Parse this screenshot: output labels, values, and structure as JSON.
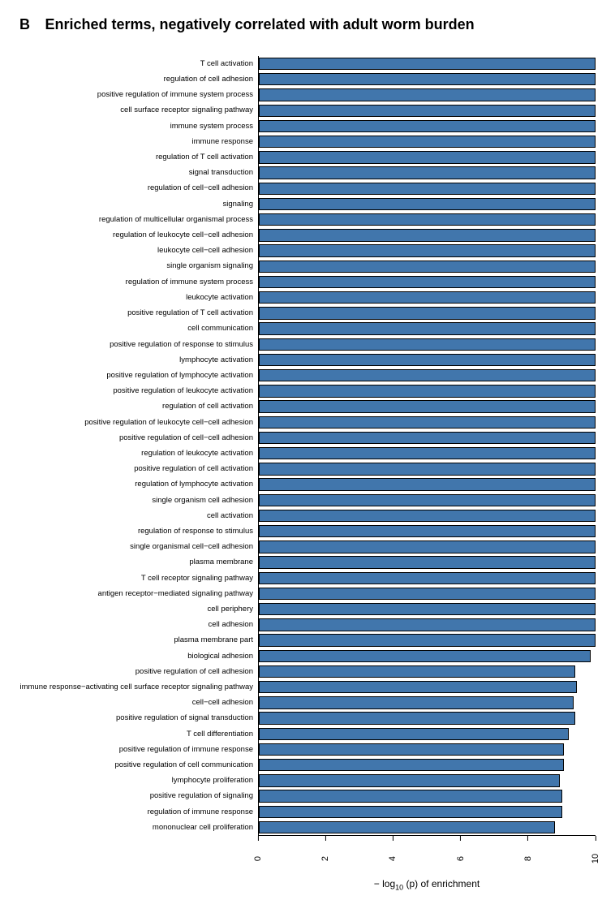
{
  "panel_label": "B",
  "title": "Enriched terms, negatively correlated with adult worm burden",
  "chart": {
    "type": "bar",
    "orientation": "horizontal",
    "xlabel_html": "− log<sub>10</sub> (p) of enrichment",
    "xlim": [
      0,
      10
    ],
    "xtick_step": 2,
    "xticks": [
      0,
      2,
      4,
      6,
      8,
      10
    ],
    "bar_color": "#4176ac",
    "bar_border_color": "#000000",
    "background_color": "#ffffff",
    "label_fontsize": 9.5,
    "tick_fontsize": 11,
    "terms": [
      {
        "label": "T cell activation",
        "value": 10.0
      },
      {
        "label": "regulation of cell adhesion",
        "value": 10.0
      },
      {
        "label": "positive regulation of immune system process",
        "value": 10.0
      },
      {
        "label": "cell surface receptor signaling pathway",
        "value": 10.0
      },
      {
        "label": "immune system process",
        "value": 10.0
      },
      {
        "label": "immune response",
        "value": 10.0
      },
      {
        "label": "regulation of T cell activation",
        "value": 10.0
      },
      {
        "label": "signal transduction",
        "value": 10.0
      },
      {
        "label": "regulation of cell−cell adhesion",
        "value": 10.0
      },
      {
        "label": "signaling",
        "value": 10.0
      },
      {
        "label": "regulation of multicellular organismal process",
        "value": 10.0
      },
      {
        "label": "regulation of leukocyte cell−cell adhesion",
        "value": 10.0
      },
      {
        "label": "leukocyte cell−cell adhesion",
        "value": 10.0
      },
      {
        "label": "single organism signaling",
        "value": 10.0
      },
      {
        "label": "regulation of immune system process",
        "value": 10.0
      },
      {
        "label": "leukocyte activation",
        "value": 10.0
      },
      {
        "label": "positive regulation of T cell activation",
        "value": 10.0
      },
      {
        "label": "cell communication",
        "value": 10.0
      },
      {
        "label": "positive regulation of response to stimulus",
        "value": 10.0
      },
      {
        "label": "lymphocyte activation",
        "value": 10.0
      },
      {
        "label": "positive regulation of lymphocyte activation",
        "value": 10.0
      },
      {
        "label": "positive regulation of leukocyte activation",
        "value": 10.0
      },
      {
        "label": "regulation of cell activation",
        "value": 10.0
      },
      {
        "label": "positive regulation of leukocyte cell−cell adhesion",
        "value": 10.0
      },
      {
        "label": "positive regulation of cell−cell adhesion",
        "value": 10.0
      },
      {
        "label": "regulation of leukocyte activation",
        "value": 10.0
      },
      {
        "label": "positive regulation of cell activation",
        "value": 10.0
      },
      {
        "label": "regulation of lymphocyte activation",
        "value": 10.0
      },
      {
        "label": "single organism cell adhesion",
        "value": 10.0
      },
      {
        "label": "cell activation",
        "value": 10.0
      },
      {
        "label": "regulation of response to stimulus",
        "value": 10.0
      },
      {
        "label": "single organismal cell−cell adhesion",
        "value": 10.0
      },
      {
        "label": "plasma membrane",
        "value": 10.0
      },
      {
        "label": "T cell receptor signaling pathway",
        "value": 10.0
      },
      {
        "label": "antigen receptor−mediated signaling pathway",
        "value": 10.0
      },
      {
        "label": "cell periphery",
        "value": 10.0
      },
      {
        "label": "cell adhesion",
        "value": 10.0
      },
      {
        "label": "plasma membrane part",
        "value": 10.0
      },
      {
        "label": "biological adhesion",
        "value": 9.85
      },
      {
        "label": "positive regulation of cell adhesion",
        "value": 9.4
      },
      {
        "label": "immune response−activating cell surface receptor signaling pathway",
        "value": 9.45
      },
      {
        "label": "cell−cell adhesion",
        "value": 9.35
      },
      {
        "label": "positive regulation of signal transduction",
        "value": 9.4
      },
      {
        "label": "T cell differentiation",
        "value": 9.2
      },
      {
        "label": "positive regulation of immune response",
        "value": 9.05
      },
      {
        "label": "positive regulation of cell communication",
        "value": 9.05
      },
      {
        "label": "lymphocyte proliferation",
        "value": 8.95
      },
      {
        "label": "positive regulation of signaling",
        "value": 9.0
      },
      {
        "label": "regulation of immune response",
        "value": 9.0
      },
      {
        "label": "mononuclear cell proliferation",
        "value": 8.8
      }
    ]
  }
}
